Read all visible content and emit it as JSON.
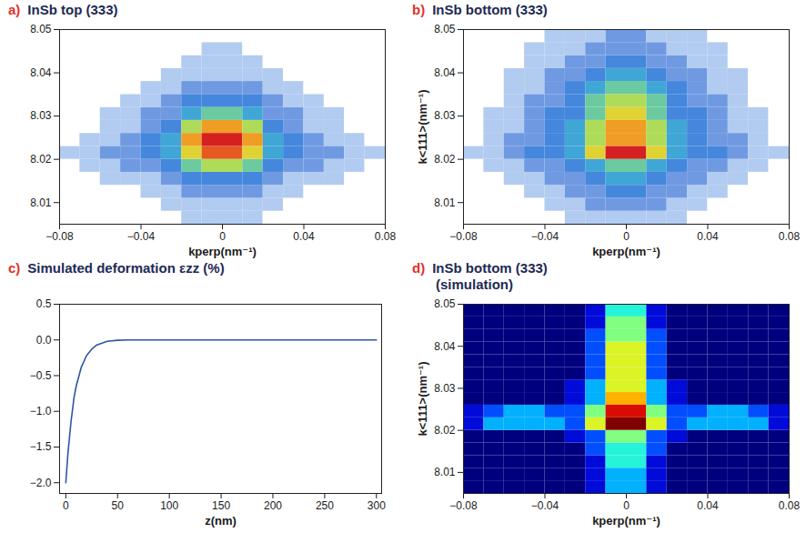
{
  "chart_data": [
    {
      "label": "a)",
      "title": "InSb top (333)",
      "type": "heatmap",
      "color": "jet_on_white",
      "xlabel": "kperp(nm⁻¹)",
      "xlim": [
        -0.08,
        0.08
      ],
      "xticks": [
        {
          "value": -0.08,
          "label": "−0.08"
        },
        {
          "value": -0.04,
          "label": "−0.04"
        },
        0,
        0.04,
        0.08
      ],
      "ylim": [
        8.005,
        8.05
      ],
      "yticks": [
        8.01,
        8.02,
        8.03,
        8.04,
        8.05
      ],
      "zlim": [
        0,
        10
      ],
      "x_edges": [
        -0.08,
        -0.07,
        -0.06,
        -0.05,
        -0.04,
        -0.03,
        -0.02,
        -0.01,
        0,
        0.01,
        0.02,
        0.03,
        0.04,
        0.05,
        0.06,
        0.07,
        0.08
      ],
      "y_edges": [
        8.005,
        8.008,
        8.011,
        8.014,
        8.017,
        8.02,
        8.023,
        8.026,
        8.029,
        8.032,
        8.035,
        8.038,
        8.041,
        8.044,
        8.047,
        8.05
      ],
      "z": [
        [
          0,
          0,
          0,
          0,
          0,
          0,
          1,
          1,
          1,
          1,
          0,
          0,
          0,
          0,
          0,
          0
        ],
        [
          0,
          0,
          0,
          0,
          0,
          1,
          1,
          1,
          1,
          1,
          1,
          0,
          0,
          0,
          0,
          0
        ],
        [
          0,
          0,
          0,
          0,
          1,
          1,
          2,
          2,
          2,
          2,
          1,
          1,
          0,
          0,
          0,
          0
        ],
        [
          0,
          0,
          1,
          1,
          1,
          2,
          3,
          3,
          3,
          3,
          2,
          1,
          1,
          1,
          0,
          0
        ],
        [
          0,
          1,
          1,
          2,
          2,
          3,
          5,
          6,
          6,
          5,
          3,
          2,
          2,
          1,
          1,
          0
        ],
        [
          1,
          1,
          2,
          2,
          3,
          4,
          7,
          9,
          9,
          7,
          4,
          3,
          2,
          2,
          1,
          1
        ],
        [
          0,
          1,
          1,
          2,
          3,
          4,
          8,
          10,
          10,
          8,
          4,
          3,
          2,
          1,
          1,
          0
        ],
        [
          0,
          0,
          1,
          1,
          2,
          3,
          6,
          8,
          8,
          6,
          3,
          2,
          1,
          1,
          0,
          0
        ],
        [
          0,
          0,
          1,
          1,
          2,
          2,
          4,
          5,
          5,
          4,
          2,
          2,
          1,
          1,
          0,
          0
        ],
        [
          0,
          0,
          0,
          1,
          1,
          2,
          3,
          3,
          3,
          3,
          2,
          1,
          1,
          0,
          0,
          0
        ],
        [
          0,
          0,
          0,
          0,
          1,
          1,
          2,
          2,
          2,
          2,
          1,
          1,
          0,
          0,
          0,
          0
        ],
        [
          0,
          0,
          0,
          0,
          0,
          1,
          1,
          1,
          1,
          1,
          1,
          0,
          0,
          0,
          0,
          0
        ],
        [
          0,
          0,
          0,
          0,
          0,
          0,
          1,
          1,
          1,
          1,
          0,
          0,
          0,
          0,
          0,
          0
        ],
        [
          0,
          0,
          0,
          0,
          0,
          0,
          0,
          1,
          1,
          0,
          0,
          0,
          0,
          0,
          0,
          0
        ],
        [
          0,
          0,
          0,
          0,
          0,
          0,
          0,
          0,
          0,
          0,
          0,
          0,
          0,
          0,
          0,
          0
        ]
      ]
    },
    {
      "label": "b)",
      "title": "InSb bottom (333)",
      "type": "heatmap",
      "color": "jet_on_white",
      "xlabel": "kperp(nm⁻¹)",
      "ylabel": "k<111>(nm⁻¹)",
      "xlim": [
        -0.08,
        0.08
      ],
      "xticks": [
        {
          "value": -0.08,
          "label": "−0.08"
        },
        {
          "value": -0.04,
          "label": "−0.04"
        },
        0,
        0.04,
        0.08
      ],
      "ylim": [
        8.005,
        8.05
      ],
      "yticks": [
        8.01,
        8.02,
        8.03,
        8.04,
        8.05
      ],
      "zlim": [
        0,
        10
      ],
      "x_edges": [
        -0.08,
        -0.07,
        -0.06,
        -0.05,
        -0.04,
        -0.03,
        -0.02,
        -0.01,
        0,
        0.01,
        0.02,
        0.03,
        0.04,
        0.05,
        0.06,
        0.07,
        0.08
      ],
      "y_edges": [
        8.005,
        8.008,
        8.011,
        8.014,
        8.017,
        8.02,
        8.023,
        8.026,
        8.029,
        8.032,
        8.035,
        8.038,
        8.041,
        8.044,
        8.047,
        8.05
      ],
      "z": [
        [
          0,
          0,
          0,
          0,
          0,
          1,
          1,
          1,
          1,
          1,
          1,
          0,
          0,
          0,
          0,
          0
        ],
        [
          0,
          0,
          0,
          0,
          1,
          1,
          2,
          2,
          2,
          2,
          1,
          1,
          0,
          0,
          0,
          0
        ],
        [
          0,
          0,
          0,
          1,
          1,
          2,
          2,
          3,
          3,
          2,
          2,
          1,
          1,
          0,
          0,
          0
        ],
        [
          0,
          0,
          1,
          1,
          2,
          2,
          3,
          4,
          4,
          3,
          2,
          2,
          1,
          1,
          0,
          0
        ],
        [
          0,
          1,
          1,
          2,
          2,
          3,
          4,
          5,
          5,
          4,
          3,
          2,
          2,
          1,
          1,
          0
        ],
        [
          1,
          1,
          2,
          3,
          3,
          4,
          7,
          10,
          10,
          7,
          4,
          3,
          3,
          2,
          1,
          1
        ],
        [
          0,
          1,
          2,
          2,
          3,
          4,
          6,
          8,
          8,
          6,
          4,
          3,
          2,
          2,
          1,
          0
        ],
        [
          0,
          1,
          1,
          2,
          3,
          4,
          6,
          8,
          8,
          6,
          4,
          3,
          2,
          1,
          1,
          0
        ],
        [
          0,
          1,
          1,
          2,
          3,
          3,
          5,
          7,
          7,
          5,
          3,
          3,
          2,
          1,
          1,
          0
        ],
        [
          0,
          0,
          1,
          2,
          2,
          3,
          5,
          6,
          6,
          5,
          3,
          2,
          2,
          1,
          0,
          0
        ],
        [
          0,
          0,
          1,
          1,
          2,
          3,
          4,
          5,
          5,
          4,
          3,
          2,
          1,
          1,
          0,
          0
        ],
        [
          0,
          0,
          1,
          1,
          2,
          2,
          3,
          4,
          4,
          3,
          2,
          2,
          1,
          1,
          0,
          0
        ],
        [
          0,
          0,
          0,
          1,
          1,
          2,
          2,
          3,
          3,
          2,
          2,
          1,
          1,
          0,
          0,
          0
        ],
        [
          0,
          0,
          0,
          1,
          1,
          1,
          2,
          2,
          2,
          2,
          1,
          1,
          1,
          0,
          0,
          0
        ],
        [
          0,
          0,
          0,
          0,
          1,
          1,
          1,
          2,
          2,
          1,
          1,
          1,
          0,
          0,
          0,
          0
        ]
      ]
    },
    {
      "label": "c)",
      "title": "Simulated deformation εzz (%)",
      "type": "line",
      "color": "#2f55a4",
      "xlabel": "z(nm)",
      "xlim": [
        -6,
        305
      ],
      "xticks": [
        0,
        50,
        100,
        150,
        200,
        250,
        300
      ],
      "ylim": [
        -2.15,
        0.5
      ],
      "yticks": [
        {
          "value": 0.5,
          "label": "0.5"
        },
        {
          "value": 0,
          "label": "0.0"
        },
        {
          "value": -0.5,
          "label": "−0.5"
        },
        {
          "value": -1,
          "label": "−1.0"
        },
        {
          "value": -1.5,
          "label": "−1.5"
        },
        {
          "value": -2,
          "label": "−2.0"
        }
      ],
      "x": [
        0,
        2,
        5,
        8,
        10,
        15,
        20,
        25,
        30,
        40,
        50,
        60,
        100,
        200,
        300
      ],
      "values": [
        -2.0,
        -1.6,
        -1.15,
        -0.8,
        -0.65,
        -0.38,
        -0.22,
        -0.13,
        -0.07,
        -0.02,
        -0.005,
        0,
        0,
        0,
        0
      ]
    },
    {
      "label": "d)",
      "title": "InSb bottom (333)",
      "subtitle": "(simulation)",
      "type": "heatmap",
      "color": "jet",
      "xlabel": "kperp(nm⁻¹)",
      "ylabel": "k<111>(nm⁻¹)",
      "xlim": [
        -0.08,
        0.08
      ],
      "xticks": [
        {
          "value": -0.08,
          "label": "−0.08"
        },
        {
          "value": -0.04,
          "label": "−0.04"
        },
        0,
        0.04,
        0.08
      ],
      "ylim": [
        8.005,
        8.05
      ],
      "yticks": [
        8.01,
        8.02,
        8.03,
        8.04,
        8.05
      ],
      "zlim": [
        0,
        10
      ],
      "x_edges": [
        -0.08,
        -0.07,
        -0.06,
        -0.05,
        -0.04,
        -0.03,
        -0.02,
        -0.01,
        0,
        0.01,
        0.02,
        0.03,
        0.04,
        0.05,
        0.06,
        0.07,
        0.08
      ],
      "y_edges": [
        8.005,
        8.008,
        8.011,
        8.014,
        8.017,
        8.02,
        8.023,
        8.026,
        8.029,
        8.032,
        8.035,
        8.038,
        8.041,
        8.044,
        8.047,
        8.05
      ],
      "z": [
        [
          0,
          0,
          0,
          0,
          0,
          0,
          1,
          3,
          3,
          1,
          0,
          0,
          0,
          0,
          0,
          0
        ],
        [
          0,
          0,
          0,
          0,
          0,
          0,
          1,
          3,
          3,
          1,
          0,
          0,
          0,
          0,
          0,
          0
        ],
        [
          0,
          0,
          0,
          0,
          0,
          0,
          1,
          4,
          4,
          1,
          0,
          0,
          0,
          0,
          0,
          0
        ],
        [
          0,
          0,
          0,
          0,
          0,
          0,
          2,
          4,
          4,
          2,
          0,
          0,
          0,
          0,
          0,
          0
        ],
        [
          0,
          0,
          0,
          0,
          0,
          1,
          2,
          5,
          5,
          2,
          1,
          0,
          0,
          0,
          0,
          0
        ],
        [
          1,
          3,
          3,
          3,
          3,
          2,
          6,
          10,
          10,
          6,
          2,
          3,
          3,
          3,
          3,
          1
        ],
        [
          1,
          2,
          3,
          3,
          2,
          2,
          5,
          9,
          9,
          5,
          2,
          2,
          3,
          3,
          2,
          1
        ],
        [
          0,
          0,
          0,
          0,
          0,
          1,
          3,
          7,
          7,
          3,
          1,
          0,
          0,
          0,
          0,
          0
        ],
        [
          0,
          0,
          0,
          0,
          0,
          1,
          3,
          6,
          6,
          3,
          1,
          0,
          0,
          0,
          0,
          0
        ],
        [
          0,
          0,
          0,
          0,
          0,
          0,
          2,
          6,
          6,
          2,
          0,
          0,
          0,
          0,
          0,
          0
        ],
        [
          0,
          0,
          0,
          0,
          0,
          0,
          2,
          6,
          6,
          2,
          0,
          0,
          0,
          0,
          0,
          0
        ],
        [
          0,
          0,
          0,
          0,
          0,
          0,
          2,
          6,
          6,
          2,
          0,
          0,
          0,
          0,
          0,
          0
        ],
        [
          0,
          0,
          0,
          0,
          0,
          0,
          2,
          5,
          5,
          2,
          0,
          0,
          0,
          0,
          0,
          0
        ],
        [
          0,
          0,
          0,
          0,
          0,
          0,
          1,
          5,
          5,
          1,
          0,
          0,
          0,
          0,
          0,
          0
        ],
        [
          0,
          0,
          0,
          0,
          0,
          0,
          1,
          4,
          4,
          1,
          0,
          0,
          0,
          0,
          0,
          0
        ]
      ]
    }
  ]
}
